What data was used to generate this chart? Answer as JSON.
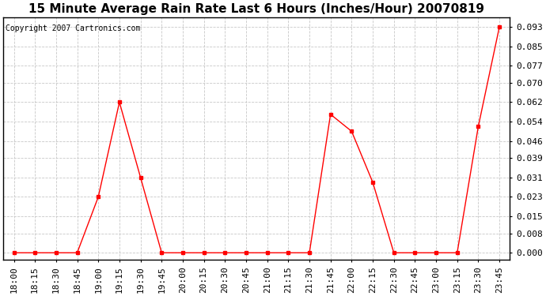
{
  "title": "15 Minute Average Rain Rate Last 6 Hours (Inches/Hour) 20070819",
  "copyright": "Copyright 2007 Cartronics.com",
  "line_color": "red",
  "marker": "s",
  "marker_size": 3,
  "background_color": "white",
  "grid_color": "#c8c8c8",
  "x_labels": [
    "18:00",
    "18:15",
    "18:30",
    "18:45",
    "19:00",
    "19:15",
    "19:30",
    "19:45",
    "20:00",
    "20:15",
    "20:30",
    "20:45",
    "21:00",
    "21:15",
    "21:30",
    "21:45",
    "22:00",
    "22:15",
    "22:30",
    "22:45",
    "23:00",
    "23:15",
    "23:30",
    "23:45"
  ],
  "y_values": [
    0.0,
    0.0,
    0.0,
    0.0,
    0.023,
    0.062,
    0.031,
    0.0,
    0.0,
    0.0,
    0.0,
    0.0,
    0.0,
    0.0,
    0.0,
    0.057,
    0.05,
    0.029,
    0.0,
    0.0,
    0.0,
    0.0,
    0.052,
    0.093
  ],
  "yticks": [
    0.0,
    0.008,
    0.015,
    0.023,
    0.031,
    0.039,
    0.046,
    0.054,
    0.062,
    0.07,
    0.077,
    0.085,
    0.093
  ],
  "ylim": [
    -0.003,
    0.097
  ],
  "title_fontsize": 11,
  "tick_fontsize": 8,
  "copyright_fontsize": 7
}
